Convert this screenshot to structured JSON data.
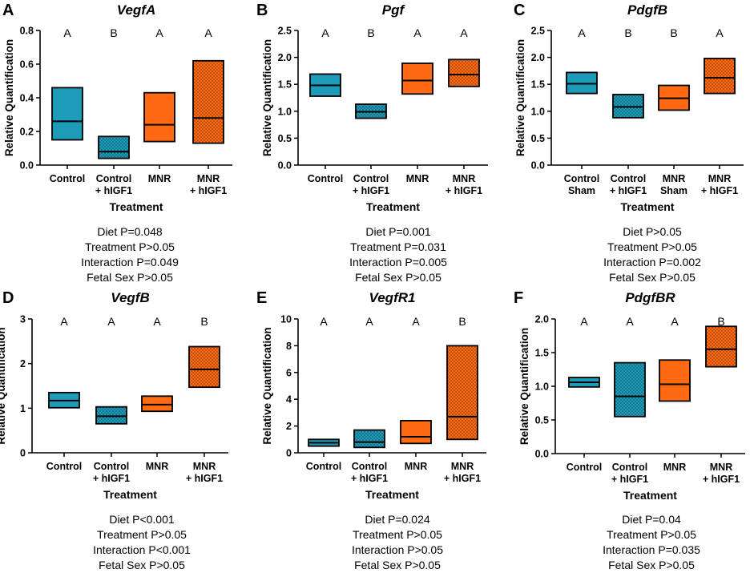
{
  "colors": {
    "control": "#1e9bb8",
    "mnr": "#ff6a13",
    "outline": "#000000"
  },
  "chart_data": [
    {
      "panel": "A",
      "title": "VegfA",
      "type": "box",
      "ylabel": "Relative Quantification",
      "xlabel": "Treatment",
      "ylim": [
        0,
        0.8
      ],
      "yticks": [
        "0.0",
        "0.2",
        "0.4",
        "0.6",
        "0.8"
      ],
      "categories": [
        [
          "Control"
        ],
        [
          "Control",
          "+ hIGF1"
        ],
        [
          "MNR"
        ],
        [
          "MNR",
          "+ hIGF1"
        ]
      ],
      "letters": [
        "A",
        "B",
        "A",
        "A"
      ],
      "boxes": [
        {
          "min": 0.15,
          "median": 0.26,
          "max": 0.46,
          "group": "control",
          "patterned": false
        },
        {
          "min": 0.04,
          "median": 0.08,
          "max": 0.17,
          "group": "control",
          "patterned": true
        },
        {
          "min": 0.14,
          "median": 0.24,
          "max": 0.43,
          "group": "mnr",
          "patterned": false
        },
        {
          "min": 0.13,
          "median": 0.28,
          "max": 0.62,
          "group": "mnr",
          "patterned": true
        }
      ],
      "stats": [
        "Diet P=0.048",
        "Treatment P>0.05",
        "Interaction P=0.049",
        "Fetal Sex P>0.05"
      ]
    },
    {
      "panel": "B",
      "title": "Pgf",
      "type": "box",
      "ylabel": "Relative Quantification",
      "xlabel": "Treatment",
      "ylim": [
        0,
        2.5
      ],
      "yticks": [
        "0.0",
        "0.5",
        "1.0",
        "1.5",
        "2.0",
        "2.5"
      ],
      "categories": [
        [
          "Control"
        ],
        [
          "Control",
          "+ hIGF1"
        ],
        [
          "MNR"
        ],
        [
          "MNR",
          "+ hIGF1"
        ]
      ],
      "letters": [
        "A",
        "B",
        "A",
        "A"
      ],
      "boxes": [
        {
          "min": 1.28,
          "median": 1.48,
          "max": 1.69,
          "group": "control",
          "patterned": false
        },
        {
          "min": 0.87,
          "median": 0.99,
          "max": 1.13,
          "group": "control",
          "patterned": true
        },
        {
          "min": 1.32,
          "median": 1.57,
          "max": 1.89,
          "group": "mnr",
          "patterned": false
        },
        {
          "min": 1.46,
          "median": 1.68,
          "max": 1.96,
          "group": "mnr",
          "patterned": true
        }
      ],
      "stats": [
        "Diet P=0.001",
        "Treatment P=0.031",
        "Interaction P=0.005",
        "Fetal Sex P>0.05"
      ]
    },
    {
      "panel": "C",
      "title": "PdgfB",
      "type": "box",
      "ylabel": "Relative Quantification",
      "xlabel": "Treatment",
      "ylim": [
        0,
        2.5
      ],
      "yticks": [
        "0.0",
        "0.5",
        "1.0",
        "1.5",
        "2.0",
        "2.5"
      ],
      "categories": [
        [
          "Control",
          "Sham"
        ],
        [
          "Control",
          "+ hIGF1"
        ],
        [
          "MNR",
          "Sham"
        ],
        [
          "MNR",
          "+ hIGF1"
        ]
      ],
      "letters": [
        "A",
        "B",
        "B",
        "A"
      ],
      "boxes": [
        {
          "min": 1.33,
          "median": 1.51,
          "max": 1.72,
          "group": "control",
          "patterned": false
        },
        {
          "min": 0.88,
          "median": 1.08,
          "max": 1.31,
          "group": "control",
          "patterned": true
        },
        {
          "min": 1.02,
          "median": 1.24,
          "max": 1.48,
          "group": "mnr",
          "patterned": false
        },
        {
          "min": 1.33,
          "median": 1.62,
          "max": 1.98,
          "group": "mnr",
          "patterned": true
        }
      ],
      "stats": [
        "Diet P>0.05",
        "Treatment P>0.05",
        "Interaction P=0.002",
        "Fetal Sex P>0.05"
      ]
    },
    {
      "panel": "D",
      "title": "VegfB",
      "type": "box",
      "ylabel": "Relative Quantification",
      "xlabel": "Treatment",
      "ylim": [
        0,
        3
      ],
      "yticks": [
        "0",
        "1",
        "2",
        "3"
      ],
      "categories": [
        [
          "Control"
        ],
        [
          "Control",
          "+ hIGF1"
        ],
        [
          "MNR"
        ],
        [
          "MNR",
          "+ hIGF1"
        ]
      ],
      "letters": [
        "A",
        "A",
        "A",
        "B"
      ],
      "boxes": [
        {
          "min": 1.01,
          "median": 1.17,
          "max": 1.35,
          "group": "control",
          "patterned": false
        },
        {
          "min": 0.65,
          "median": 0.82,
          "max": 1.03,
          "group": "control",
          "patterned": true
        },
        {
          "min": 0.93,
          "median": 1.08,
          "max": 1.27,
          "group": "mnr",
          "patterned": false
        },
        {
          "min": 1.47,
          "median": 1.87,
          "max": 2.38,
          "group": "mnr",
          "patterned": true
        }
      ],
      "stats": [
        "Diet P<0.001",
        "Treatment P>0.05",
        "Interaction P<0.001",
        "Fetal Sex P>0.05"
      ]
    },
    {
      "panel": "E",
      "title": "VegfR1",
      "type": "box",
      "ylabel": "Relative Quantification",
      "xlabel": "Treatment",
      "ylim": [
        0,
        10
      ],
      "yticks": [
        "0",
        "2",
        "4",
        "6",
        "8",
        "10"
      ],
      "categories": [
        [
          "Control"
        ],
        [
          "Control",
          "+ hIGF1"
        ],
        [
          "MNR"
        ],
        [
          "MNR",
          "+ hIGF1"
        ]
      ],
      "letters": [
        "A",
        "A",
        "A",
        "B"
      ],
      "boxes": [
        {
          "min": 0.5,
          "median": 0.75,
          "max": 1.0,
          "group": "control",
          "patterned": false
        },
        {
          "min": 0.4,
          "median": 0.8,
          "max": 1.7,
          "group": "control",
          "patterned": true
        },
        {
          "min": 0.7,
          "median": 1.2,
          "max": 2.4,
          "group": "mnr",
          "patterned": false
        },
        {
          "min": 1.0,
          "median": 2.7,
          "max": 8.0,
          "group": "mnr",
          "patterned": true
        }
      ],
      "stats": [
        "Diet P=0.024",
        "Treatment P>0.05",
        "Interaction P>0.05",
        "Fetal Sex P>0.05"
      ]
    },
    {
      "panel": "F",
      "title": "PdgfBR",
      "type": "box",
      "ylabel": "Relative Quantification",
      "xlabel": "Treatment",
      "ylim": [
        0,
        2.0
      ],
      "yticks": [
        "0.0",
        "0.5",
        "1.0",
        "1.5",
        "2.0"
      ],
      "categories": [
        [
          "Control"
        ],
        [
          "Control",
          "+ hIGF1"
        ],
        [
          "MNR"
        ],
        [
          "MNR",
          "+ hIGF1"
        ]
      ],
      "letters": [
        "A",
        "A",
        "A",
        "B"
      ],
      "boxes": [
        {
          "min": 0.99,
          "median": 1.06,
          "max": 1.13,
          "group": "control",
          "patterned": false
        },
        {
          "min": 0.55,
          "median": 0.85,
          "max": 1.35,
          "group": "control",
          "patterned": true
        },
        {
          "min": 0.78,
          "median": 1.03,
          "max": 1.39,
          "group": "mnr",
          "patterned": false
        },
        {
          "min": 1.29,
          "median": 1.55,
          "max": 1.89,
          "group": "mnr",
          "patterned": true
        }
      ],
      "stats": [
        "Diet P=0.04",
        "Treatment P>0.05",
        "Interaction P=0.035",
        "Fetal Sex P>0.05"
      ]
    }
  ]
}
